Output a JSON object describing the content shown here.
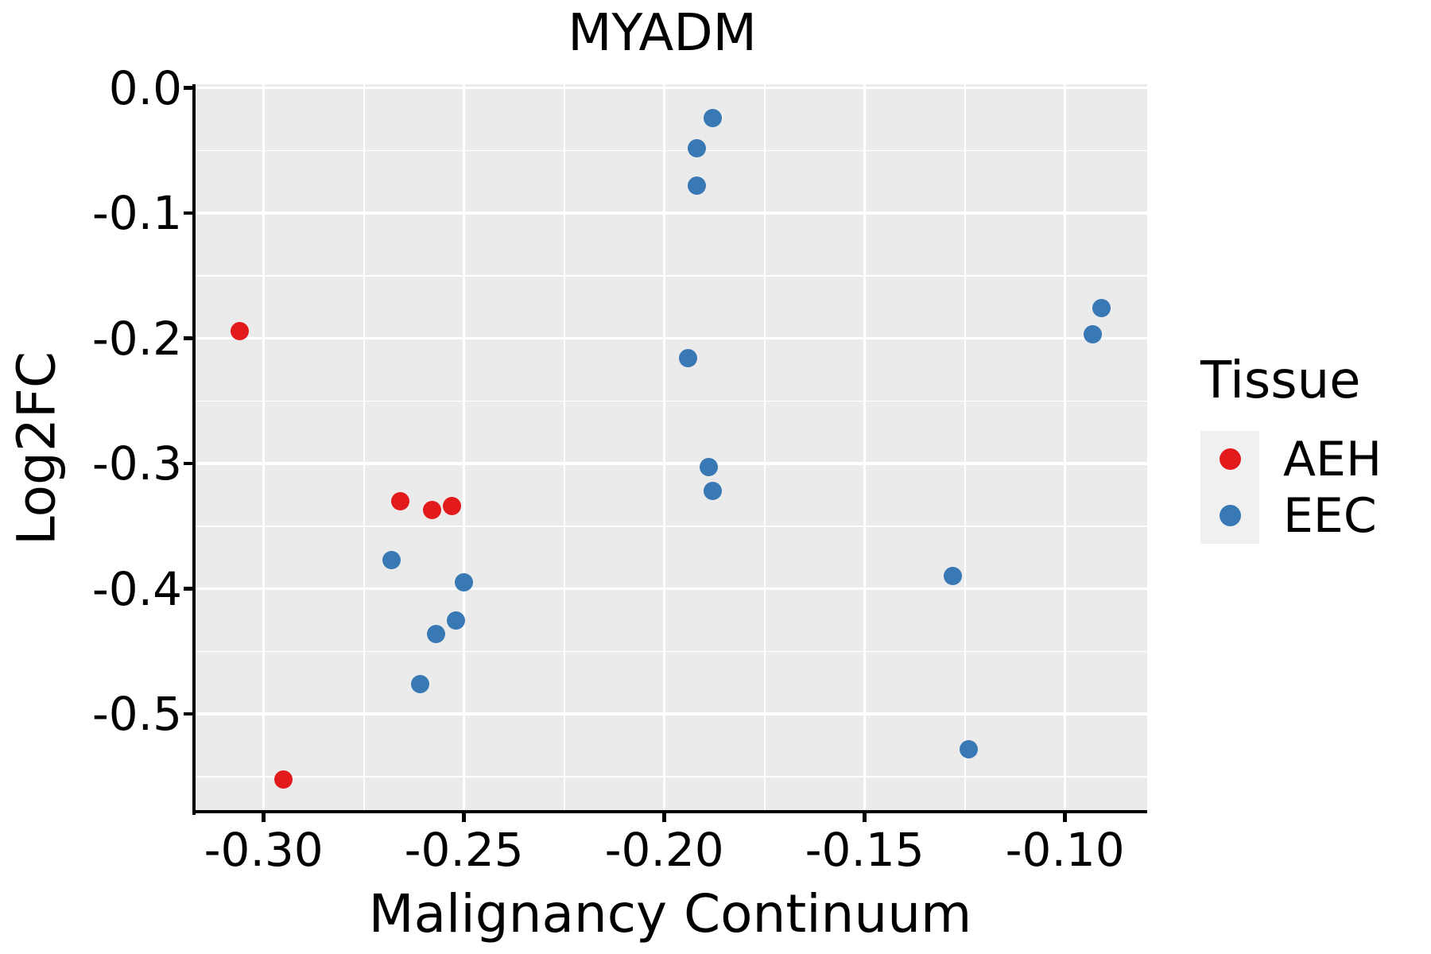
{
  "title": "MYADM",
  "colors": {
    "background": "#FFFFFF",
    "panel_background": "#EBEBEB",
    "gridline": "#FFFFFF",
    "axis": "#000000",
    "text": "#000000",
    "legend_key_background": "#F0F0F0",
    "aeh": "#E31A1C",
    "eec": "#3878B5"
  },
  "legend": {
    "title": "Tissue",
    "items": [
      {
        "label": "AEH",
        "color": "#E31A1C"
      },
      {
        "label": "EEC",
        "color": "#3878B5"
      }
    ]
  },
  "chart_data": {
    "type": "scatter",
    "title": "MYADM",
    "xlabel": "Malignancy Continuum",
    "ylabel": "Log2FC",
    "xlim": [
      -0.317,
      -0.0795
    ],
    "ylim": [
      -0.578,
      0.003
    ],
    "x_ticks": [
      -0.3,
      -0.25,
      -0.2,
      -0.15,
      -0.1
    ],
    "x_tick_labels": [
      "-0.30",
      "-0.25",
      "-0.20",
      "-0.15",
      "-0.10"
    ],
    "y_ticks": [
      0.0,
      -0.1,
      -0.2,
      -0.3,
      -0.4,
      -0.5
    ],
    "y_tick_labels": [
      "0.0",
      "-0.1",
      "-0.2",
      "-0.3",
      "-0.4",
      "-0.5"
    ],
    "x_minor_breaks": [
      -0.275,
      -0.225,
      -0.175,
      -0.125
    ],
    "y_minor_breaks": [
      -0.05,
      -0.15,
      -0.25,
      -0.35,
      -0.45,
      -0.55
    ],
    "grid": true,
    "legend_position": "right",
    "legend_title": "Tissue",
    "point_radius_px": 11.5,
    "series": [
      {
        "name": "AEH",
        "color": "#E31A1C",
        "points": [
          [
            -0.306,
            -0.194
          ],
          [
            -0.266,
            -0.33
          ],
          [
            -0.258,
            -0.337
          ],
          [
            -0.253,
            -0.334
          ],
          [
            -0.295,
            -0.552
          ]
        ]
      },
      {
        "name": "EEC",
        "color": "#3878B5",
        "points": [
          [
            -0.188,
            -0.024
          ],
          [
            -0.192,
            -0.048
          ],
          [
            -0.192,
            -0.078
          ],
          [
            -0.194,
            -0.216
          ],
          [
            -0.189,
            -0.303
          ],
          [
            -0.188,
            -0.322
          ],
          [
            -0.268,
            -0.377
          ],
          [
            -0.25,
            -0.395
          ],
          [
            -0.252,
            -0.425
          ],
          [
            -0.257,
            -0.436
          ],
          [
            -0.261,
            -0.476
          ],
          [
            -0.128,
            -0.39
          ],
          [
            -0.124,
            -0.528
          ],
          [
            -0.091,
            -0.176
          ],
          [
            -0.093,
            -0.197
          ]
        ]
      }
    ]
  }
}
